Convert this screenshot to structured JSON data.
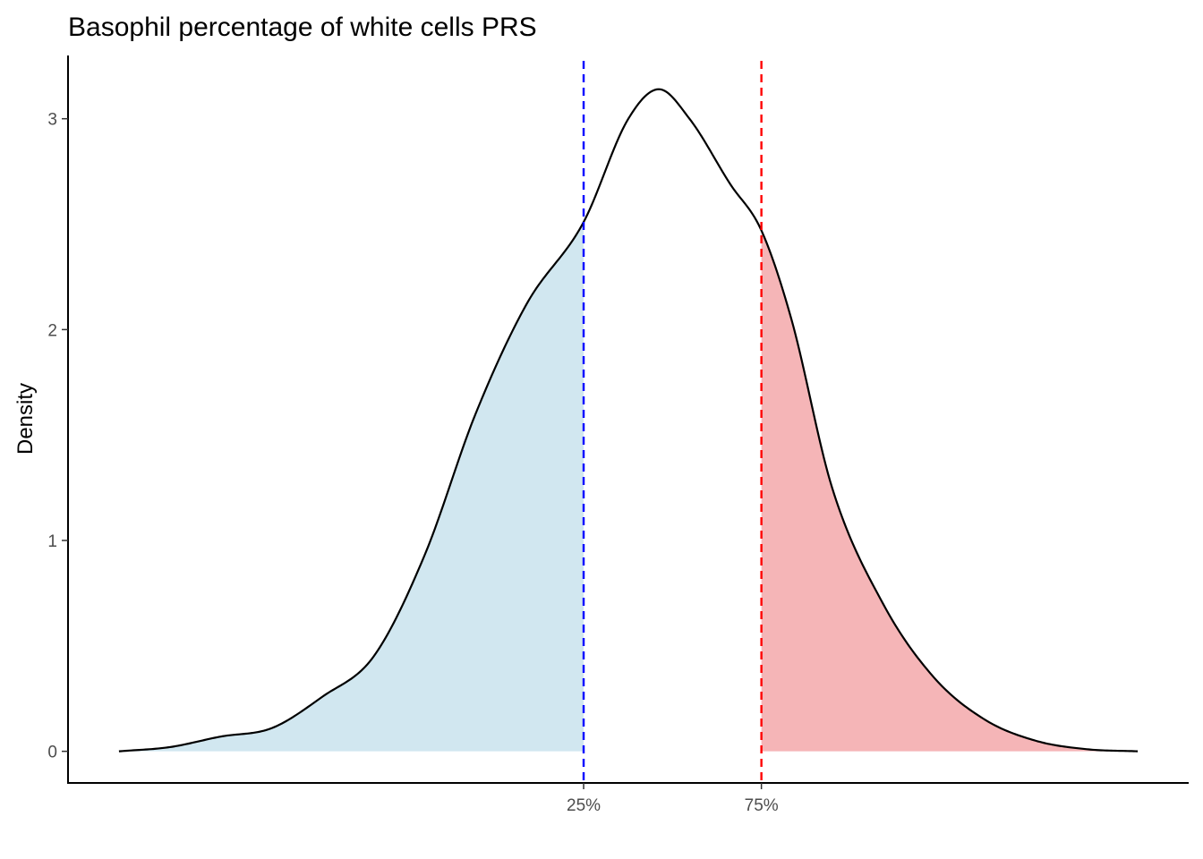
{
  "chart_data": {
    "type": "area",
    "title": "Basophil percentage of white cells PRS",
    "xlabel": "",
    "ylabel": "Density",
    "ylim": [
      -0.15,
      3.3
    ],
    "xlim": [
      -0.05,
      1.05
    ],
    "yticks": [
      0,
      1,
      2,
      3
    ],
    "grid": false,
    "legend": "none",
    "quantile_lines": [
      {
        "label": "25%",
        "x": 0.4561,
        "color": "#0000ff"
      },
      {
        "label": "75%",
        "x": 0.6306,
        "color": "#ff0000"
      }
    ],
    "fills": {
      "lower": "#d1e7f0",
      "upper": "#f5b5b7"
    },
    "curve_color": "#000000",
    "density": {
      "x": [
        0,
        0.05,
        0.1,
        0.15,
        0.2,
        0.25,
        0.3,
        0.35,
        0.4,
        0.4561,
        0.5,
        0.53,
        0.56,
        0.6,
        0.6306,
        0.66,
        0.7,
        0.75,
        0.8,
        0.85,
        0.9,
        0.95,
        1.0
      ],
      "y": [
        0,
        0.02,
        0.07,
        0.11,
        0.26,
        0.45,
        0.93,
        1.6,
        2.12,
        2.51,
        3.0,
        3.14,
        3.0,
        2.69,
        2.47,
        2.05,
        1.25,
        0.7,
        0.35,
        0.15,
        0.05,
        0.01,
        0
      ]
    }
  }
}
